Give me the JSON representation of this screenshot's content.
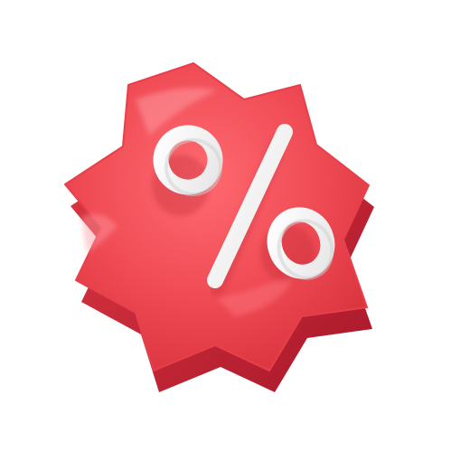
{
  "image": {
    "subject": "percent-discount-badge",
    "symbol": "%"
  },
  "colors": {
    "background": "#ffffff",
    "badge_main": "#f04b55",
    "badge_dark": "#b8202c",
    "badge_light": "#ff8a8f",
    "symbol": "#ffffff",
    "symbol_shade": "#d9d9d9"
  }
}
